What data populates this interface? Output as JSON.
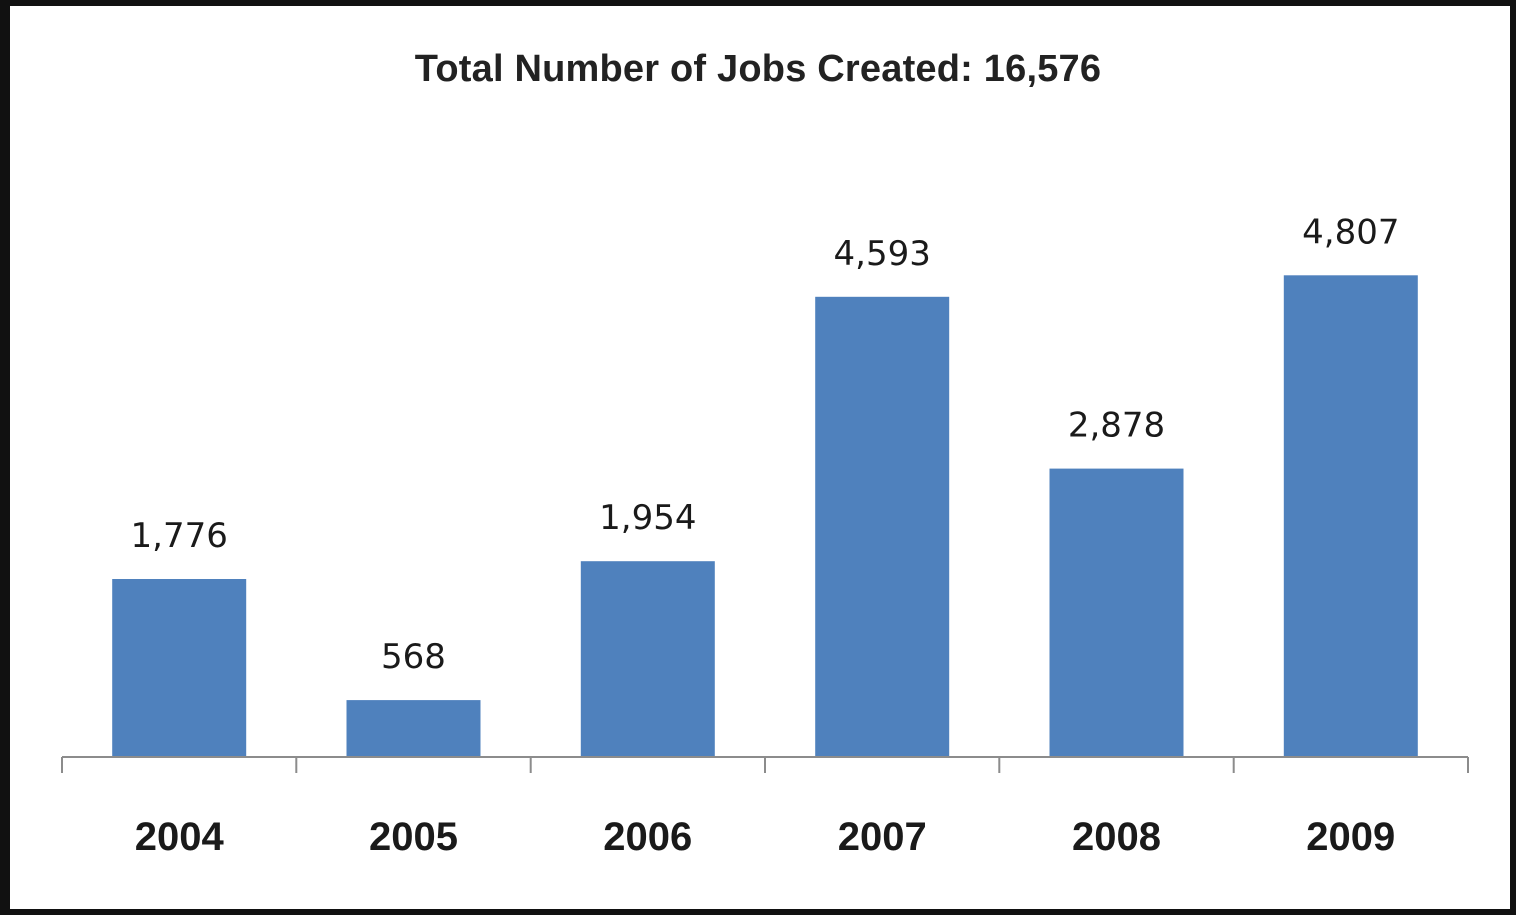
{
  "chart_data": {
    "type": "bar",
    "title": "Total Number of Jobs Created: 16,576",
    "xlabel": "",
    "ylabel": "",
    "categories": [
      "2004",
      "2005",
      "2006",
      "2007",
      "2008",
      "2009"
    ],
    "values": [
      1776,
      568,
      1954,
      4593,
      2878,
      4807
    ],
    "value_labels": [
      "1,776",
      "568",
      "1,954",
      "4,593",
      "2,878",
      "4,807"
    ],
    "ylim": [
      0,
      5600
    ],
    "grid": false,
    "legend": "none",
    "bar_color": "#4F81BD"
  }
}
